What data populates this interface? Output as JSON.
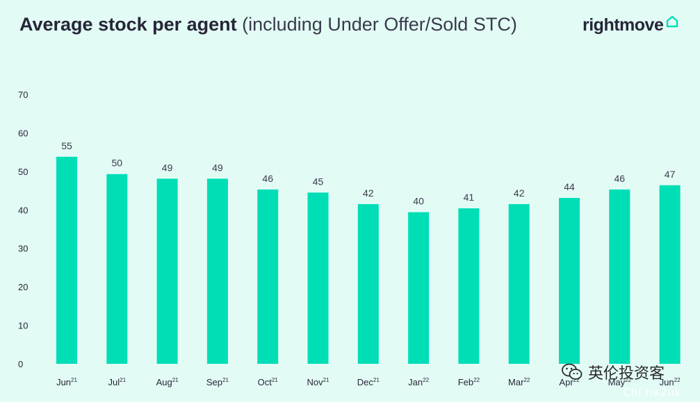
{
  "title": {
    "bold": "Average stock per agent",
    "light": "(including Under Offer/Sold STC)"
  },
  "logo": {
    "text": "rightmove",
    "icon": "house-outline-icon"
  },
  "watermark": {
    "icon": "wechat-icon",
    "text": "英伦投资客",
    "url": "Chi na2uk"
  },
  "colors": {
    "bar": "#00deb6",
    "background": "#e2fbf5",
    "text": "#262637"
  },
  "chart_data": {
    "type": "bar",
    "title": "Average stock per agent",
    "subtitle": "(including Under Offer/Sold STC)",
    "categories": [
      {
        "month": "Jun",
        "year": "21"
      },
      {
        "month": "Jul",
        "year": "21"
      },
      {
        "month": "Aug",
        "year": "21"
      },
      {
        "month": "Sep",
        "year": "21"
      },
      {
        "month": "Oct",
        "year": "21"
      },
      {
        "month": "Nov",
        "year": "21"
      },
      {
        "month": "Dec",
        "year": "21"
      },
      {
        "month": "Jan",
        "year": "22"
      },
      {
        "month": "Feb",
        "year": "22"
      },
      {
        "month": "Mar",
        "year": "22"
      },
      {
        "month": "Apr",
        "year": "22"
      },
      {
        "month": "May",
        "year": "22"
      },
      {
        "month": "Jun",
        "year": "22"
      }
    ],
    "values": [
      55,
      50,
      49,
      49,
      46,
      45,
      42,
      40,
      41,
      42,
      44,
      46,
      47
    ],
    "bar_heights": [
      53.8,
      49.3,
      48.1,
      48.1,
      45.3,
      44.5,
      41.5,
      39.4,
      40.4,
      41.5,
      43.1,
      45.3,
      46.4
    ],
    "data_labels": [
      "55",
      "50",
      "49",
      "49",
      "46",
      "45",
      "42",
      "40",
      "41",
      "42",
      "44",
      "46",
      "47"
    ],
    "y_ticks": [
      0,
      10,
      20,
      30,
      40,
      50,
      60,
      70
    ],
    "ylim": [
      0,
      70
    ],
    "grid": false,
    "legend": "none"
  }
}
